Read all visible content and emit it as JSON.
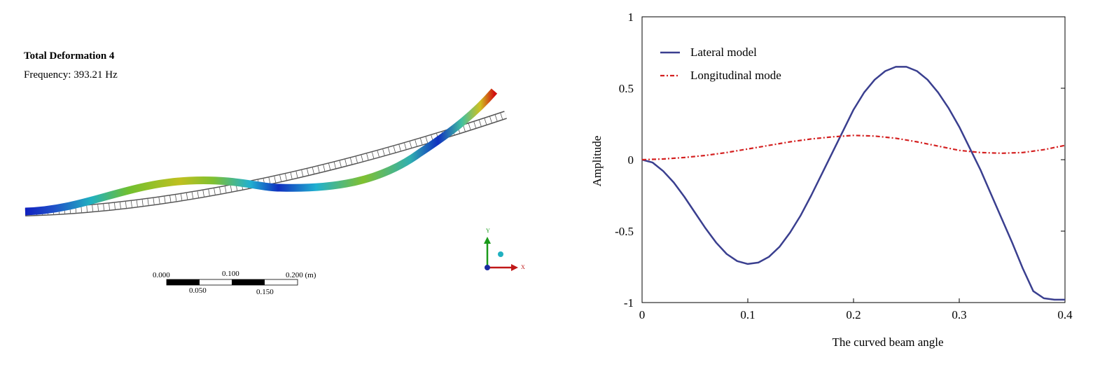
{
  "fea_panel": {
    "title": "Total Deformation 4",
    "frequency_label": "Frequency:",
    "frequency_value": "393.21 Hz",
    "scale_bar": {
      "top_labels": [
        "0.000",
        "0.100",
        "0.200 (m)"
      ],
      "bottom_labels": [
        "0.050",
        "0.150"
      ]
    },
    "axis_triad": {
      "y_label": "Y",
      "x_label": "X"
    },
    "colors": {
      "low": "#1020c0",
      "mid_low": "#20b0d0",
      "mid": "#60c040",
      "mid_high": "#d0c020",
      "high": "#d01010",
      "undeformed_outline": "#555555"
    }
  },
  "chart_data": {
    "type": "line",
    "xlabel": "The curved beam angle",
    "ylabel": "Amplitude",
    "xlim": [
      0,
      0.4
    ],
    "ylim": [
      -1,
      1
    ],
    "xticks": [
      "0",
      "0.1",
      "0.2",
      "0.3",
      "0.4"
    ],
    "yticks": [
      "1",
      "0.5",
      "0",
      "-0.5",
      "-1"
    ],
    "legend_position": "top-left",
    "series": [
      {
        "name": "Lateral model",
        "color": "#3a3f8f",
        "style": "solid",
        "x": [
          0,
          0.01,
          0.02,
          0.03,
          0.04,
          0.05,
          0.06,
          0.07,
          0.08,
          0.09,
          0.1,
          0.11,
          0.12,
          0.13,
          0.14,
          0.15,
          0.16,
          0.17,
          0.18,
          0.19,
          0.2,
          0.21,
          0.22,
          0.23,
          0.24,
          0.25,
          0.26,
          0.27,
          0.28,
          0.29,
          0.3,
          0.31,
          0.32,
          0.33,
          0.34,
          0.35,
          0.36,
          0.37,
          0.38,
          0.39,
          0.4
        ],
        "y": [
          0,
          -0.02,
          -0.08,
          -0.16,
          -0.26,
          -0.37,
          -0.48,
          -0.58,
          -0.66,
          -0.71,
          -0.73,
          -0.72,
          -0.68,
          -0.61,
          -0.51,
          -0.39,
          -0.25,
          -0.1,
          0.05,
          0.2,
          0.35,
          0.47,
          0.56,
          0.62,
          0.65,
          0.65,
          0.62,
          0.56,
          0.47,
          0.36,
          0.23,
          0.08,
          -0.07,
          -0.24,
          -0.41,
          -0.58,
          -0.76,
          -0.92,
          -0.97,
          -0.98,
          -0.98
        ]
      },
      {
        "name": "Longitudinal mode",
        "color": "#d42020",
        "style": "dash-dot",
        "x": [
          0,
          0.02,
          0.04,
          0.06,
          0.08,
          0.1,
          0.12,
          0.14,
          0.16,
          0.18,
          0.2,
          0.22,
          0.24,
          0.26,
          0.28,
          0.3,
          0.32,
          0.34,
          0.36,
          0.38,
          0.4
        ],
        "y": [
          0,
          0.005,
          0.015,
          0.03,
          0.05,
          0.075,
          0.1,
          0.125,
          0.145,
          0.16,
          0.17,
          0.165,
          0.15,
          0.125,
          0.095,
          0.065,
          0.05,
          0.045,
          0.05,
          0.07,
          0.1
        ]
      }
    ]
  }
}
